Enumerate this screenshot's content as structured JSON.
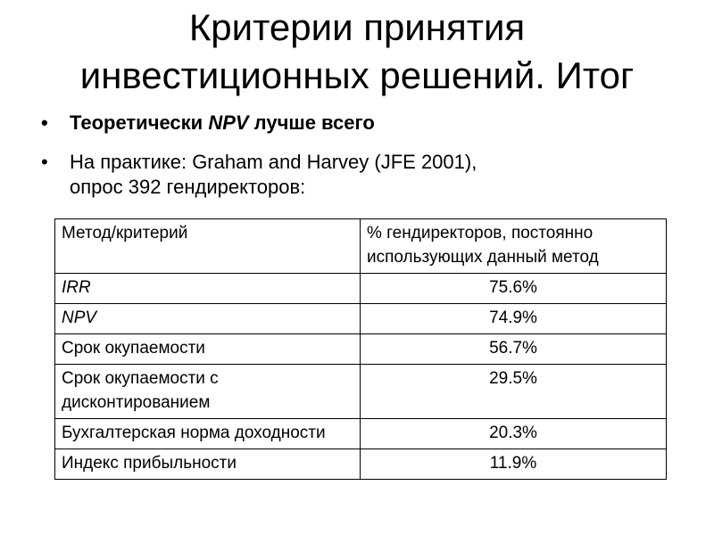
{
  "title": {
    "line1": "Критерии принятия",
    "line2": "инвестиционных решений. Итог"
  },
  "bullets": [
    {
      "marker": "•",
      "pre": "Теоретически ",
      "em": "NPV",
      "post": " лучше всего"
    },
    {
      "marker": "•",
      "line1": "На практике: Graham and Harvey (JFE 2001),",
      "line2": "опрос 392 гендиректоров:"
    }
  ],
  "table": {
    "headers": [
      "Метод/критерий",
      "% гендиректоров, постоянно использующих данный метод"
    ],
    "rows": [
      {
        "method": "IRR",
        "percent": "75.6%"
      },
      {
        "method": "NPV",
        "percent": "74.9%"
      },
      {
        "method": "Срок окупаемости",
        "percent": "56.7%"
      },
      {
        "method": "Срок окупаемости с дисконтированием",
        "percent": "29.5%"
      },
      {
        "method": "Бухгалтерская норма доходности",
        "percent": "20.3%"
      },
      {
        "method": "Индекс прибыльности",
        "percent": "11.9%"
      }
    ]
  }
}
